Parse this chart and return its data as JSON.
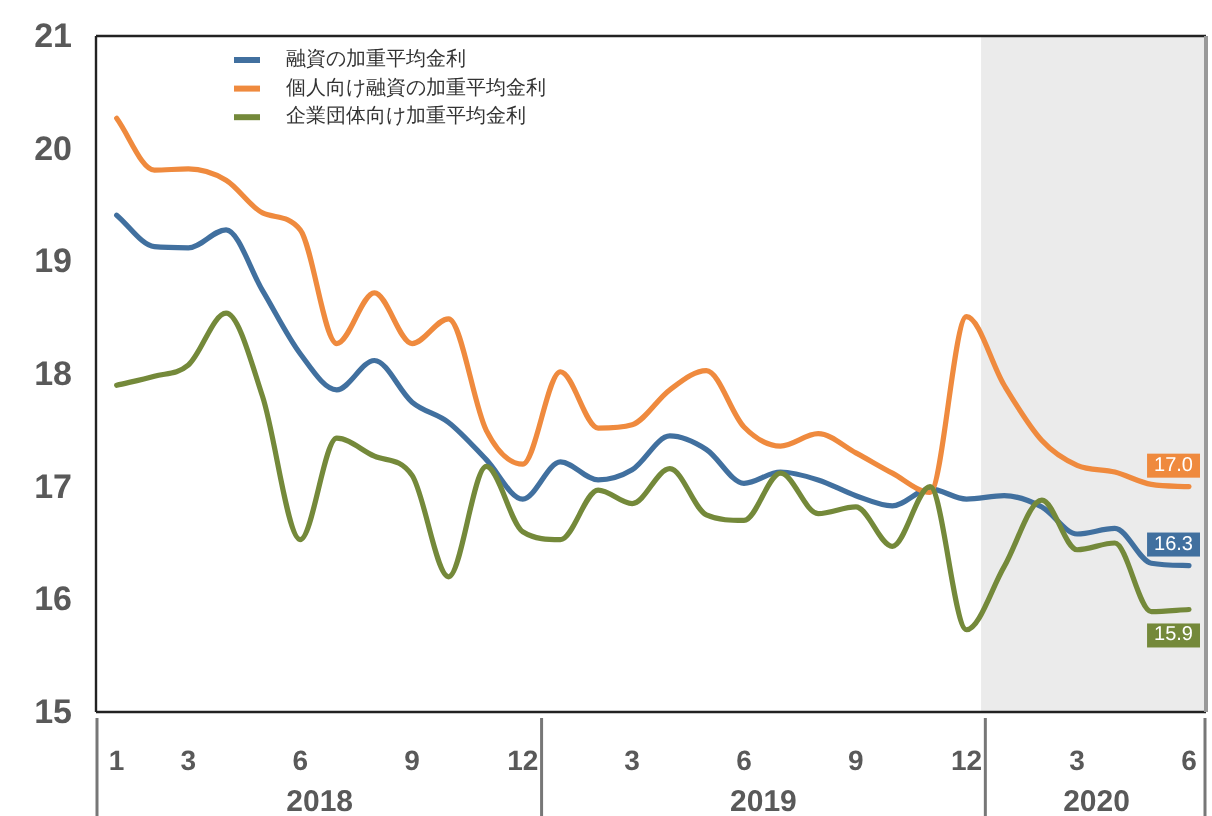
{
  "chart_data": {
    "type": "line",
    "x": [
      "2018-01",
      "2018-02",
      "2018-03",
      "2018-04",
      "2018-05",
      "2018-06",
      "2018-07",
      "2018-08",
      "2018-09",
      "2018-10",
      "2018-11",
      "2018-12",
      "2019-01",
      "2019-02",
      "2019-03",
      "2019-04",
      "2019-05",
      "2019-06",
      "2019-07",
      "2019-08",
      "2019-09",
      "2019-10",
      "2019-11",
      "2019-12",
      "2020-01",
      "2020-02",
      "2020-03",
      "2020-04",
      "2020-05",
      "2020-06"
    ],
    "series": [
      {
        "name": "融資の加重平均金利",
        "color": "#41709f",
        "values": [
          19.41,
          19.13,
          19.12,
          19.28,
          18.74,
          18.18,
          17.86,
          18.12,
          17.75,
          17.57,
          17.24,
          16.89,
          17.22,
          17.06,
          17.15,
          17.45,
          17.33,
          17.03,
          17.13,
          17.06,
          16.92,
          16.83,
          16.98,
          16.89,
          16.92,
          16.82,
          16.58,
          16.63,
          16.32,
          16.3
        ],
        "value_labels": [
          null,
          null,
          null,
          null,
          null,
          null,
          null,
          null,
          null,
          null,
          null,
          null,
          null,
          null,
          null,
          null,
          null,
          null,
          null,
          null,
          null,
          null,
          null,
          null,
          null,
          null,
          null,
          null,
          null,
          "16.3"
        ]
      },
      {
        "name": "個人向け融資の加重平均金利",
        "color": "#ef8a3e",
        "values": [
          20.27,
          19.81,
          19.82,
          19.72,
          19.43,
          19.28,
          18.27,
          18.72,
          18.27,
          18.49,
          17.5,
          17.2,
          18.02,
          17.52,
          17.55,
          17.86,
          18.03,
          17.53,
          17.36,
          17.47,
          17.3,
          17.12,
          16.95,
          18.51,
          17.9,
          17.41,
          17.19,
          17.13,
          17.02,
          17.0
        ],
        "value_labels": [
          null,
          null,
          null,
          null,
          null,
          null,
          null,
          null,
          null,
          null,
          null,
          null,
          null,
          null,
          null,
          null,
          null,
          null,
          null,
          null,
          null,
          null,
          null,
          null,
          null,
          null,
          null,
          null,
          null,
          "17.0"
        ]
      },
      {
        "name": "企業団体向け加重平均金利",
        "color": "#74893a",
        "values": [
          17.9,
          17.98,
          18.08,
          18.54,
          17.8,
          16.53,
          17.43,
          17.27,
          17.1,
          16.2,
          17.18,
          16.6,
          16.53,
          16.97,
          16.85,
          17.16,
          16.75,
          16.7,
          17.12,
          16.76,
          16.82,
          16.47,
          17.0,
          15.73,
          16.29,
          16.88,
          16.44,
          16.5,
          15.89,
          15.91
        ],
        "value_labels": [
          null,
          null,
          null,
          null,
          null,
          null,
          null,
          null,
          null,
          null,
          null,
          null,
          null,
          null,
          null,
          null,
          null,
          null,
          null,
          null,
          null,
          null,
          null,
          null,
          null,
          null,
          null,
          null,
          null,
          "15.9"
        ]
      }
    ],
    "xlim": [
      "2017-12-15",
      "2020-06-15"
    ],
    "xticks": [
      {
        "value": "2018-01",
        "label": "1"
      },
      {
        "value": "2018-03",
        "label": "3"
      },
      {
        "value": "2018-06",
        "label": "6"
      },
      {
        "value": "2018-09",
        "label": "9"
      },
      {
        "value": "2018-12",
        "label": "12"
      },
      {
        "value": "2019-03",
        "label": "3"
      },
      {
        "value": "2019-06",
        "label": "6"
      },
      {
        "value": "2019-09",
        "label": "9"
      },
      {
        "value": "2019-12",
        "label": "12"
      },
      {
        "value": "2020-03",
        "label": "3"
      },
      {
        "value": "2020-06",
        "label": "6"
      }
    ],
    "ylim": [
      15,
      21
    ],
    "yticks": [
      15,
      16,
      17,
      18,
      19,
      20,
      21
    ],
    "bands": [
      {
        "axis": "x",
        "from": "2019-12-13",
        "to": "2020-06-15",
        "color": "#ebebeb"
      }
    ],
    "annotations": [
      "2018",
      "2019",
      "2020"
    ],
    "legend": "top left"
  }
}
